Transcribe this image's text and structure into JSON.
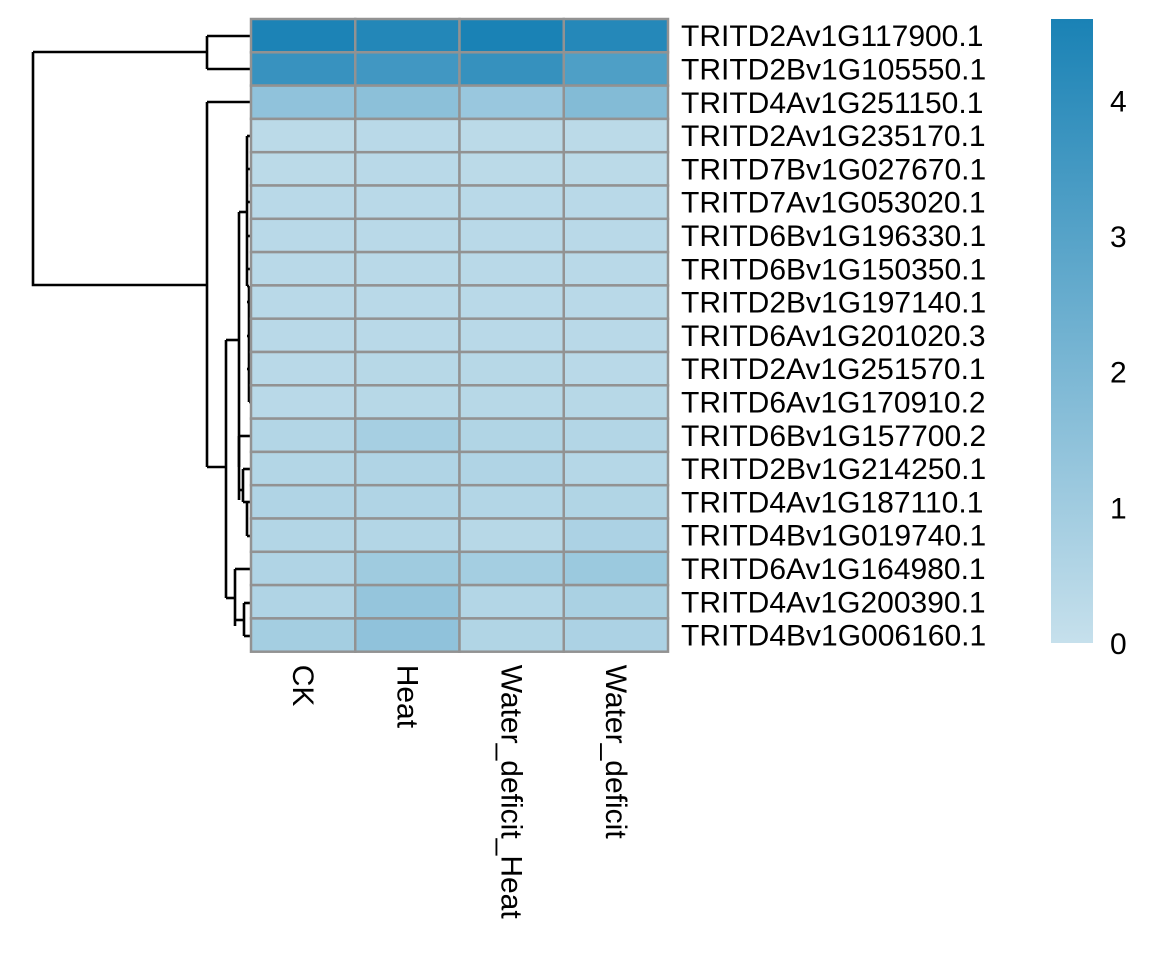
{
  "chart_data": {
    "type": "heatmap",
    "rows": [
      "TRITD2Av1G117900.1",
      "TRITD2Bv1G105550.1",
      "TRITD4Av1G251150.1",
      "TRITD2Av1G235170.1",
      "TRITD7Bv1G027670.1",
      "TRITD7Av1G053020.1",
      "TRITD6Bv1G196330.1",
      "TRITD6Bv1G150350.1",
      "TRITD2Bv1G197140.1",
      "TRITD6Av1G201020.3",
      "TRITD2Av1G251570.1",
      "TRITD6Av1G170910.2",
      "TRITD6Bv1G157700.2",
      "TRITD2Bv1G214250.1",
      "TRITD4Av1G187110.1",
      "TRITD4Bv1G019740.1",
      "TRITD6Av1G164980.1",
      "TRITD4Av1G200390.1",
      "TRITD4Bv1G006160.1"
    ],
    "columns": [
      "CK",
      "Heat",
      "Water_deficit_Heat",
      "Water_deficit"
    ],
    "values": [
      [
        4.55,
        4.35,
        4.6,
        4.3
      ],
      [
        3.8,
        3.55,
        3.85,
        3.2
      ],
      [
        1.45,
        1.55,
        1.2,
        1.8
      ],
      [
        0.3,
        0.35,
        0.3,
        0.3
      ],
      [
        0.3,
        0.35,
        0.3,
        0.3
      ],
      [
        0.35,
        0.35,
        0.35,
        0.35
      ],
      [
        0.35,
        0.35,
        0.35,
        0.35
      ],
      [
        0.35,
        0.35,
        0.35,
        0.35
      ],
      [
        0.35,
        0.35,
        0.35,
        0.35
      ],
      [
        0.35,
        0.35,
        0.35,
        0.35
      ],
      [
        0.35,
        0.4,
        0.4,
        0.35
      ],
      [
        0.35,
        0.4,
        0.4,
        0.4
      ],
      [
        0.5,
        0.85,
        0.55,
        0.5
      ],
      [
        0.5,
        0.6,
        0.6,
        0.45
      ],
      [
        0.6,
        0.6,
        0.5,
        0.55
      ],
      [
        0.5,
        0.5,
        0.4,
        0.7
      ],
      [
        0.6,
        1.05,
        0.9,
        1.15
      ],
      [
        0.6,
        1.3,
        0.5,
        0.75
      ],
      [
        0.9,
        1.45,
        0.55,
        0.7
      ]
    ],
    "legend": {
      "ticks": [
        0,
        1,
        2,
        3,
        4
      ],
      "min": 0,
      "max": 4.6,
      "colors": [
        "#c6e0ec",
        "#1a82b5"
      ],
      "placement": "right"
    },
    "row_dendrogram": "left",
    "column_label_orientation": "rotated-90"
  }
}
